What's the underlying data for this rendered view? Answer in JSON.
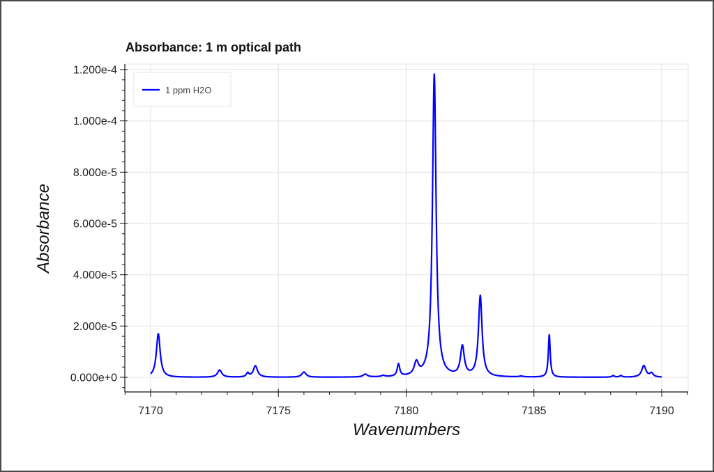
{
  "chart_data": {
    "type": "line",
    "title": "Absorbance: 1 m optical path",
    "xlabel": "Wavenumbers",
    "ylabel": "Absorbance",
    "xlim": [
      7169,
      7191
    ],
    "ylim": [
      -6e-06,
      0.000122
    ],
    "x_ticks": [
      7170,
      7175,
      7180,
      7185,
      7190
    ],
    "x_tick_labels": [
      "7170",
      "7175",
      "7180",
      "7185",
      "7190"
    ],
    "y_ticks": [
      0,
      2e-05,
      4e-05,
      6e-05,
      8e-05,
      0.0001,
      0.00012
    ],
    "y_tick_labels": [
      "0.000e+0",
      "2.000e-5",
      "4.000e-5",
      "6.000e-5",
      "8.000e-5",
      "1.000e-4",
      "1.200e-4"
    ],
    "grid": true,
    "legend_position": "top-left",
    "series": [
      {
        "name": "1 ppm H2O",
        "color": "#0000ff",
        "x_range": [
          7170.0,
          7190.0
        ],
        "peaks": [
          {
            "x": 7170.3,
            "y": 1.7e-05,
            "w": 0.09
          },
          {
            "x": 7172.7,
            "y": 2.8e-06,
            "w": 0.1
          },
          {
            "x": 7173.8,
            "y": 1.5e-06,
            "w": 0.06
          },
          {
            "x": 7174.1,
            "y": 4.4e-06,
            "w": 0.1
          },
          {
            "x": 7176.0,
            "y": 2e-06,
            "w": 0.1
          },
          {
            "x": 7178.4,
            "y": 1.1e-06,
            "w": 0.1
          },
          {
            "x": 7179.1,
            "y": 5e-07,
            "w": 0.08
          },
          {
            "x": 7179.7,
            "y": 4.8e-06,
            "w": 0.06
          },
          {
            "x": 7180.4,
            "y": 5e-06,
            "w": 0.1
          },
          {
            "x": 7181.1,
            "y": 0.000118,
            "w": 0.085
          },
          {
            "x": 7182.2,
            "y": 1.15e-05,
            "w": 0.09
          },
          {
            "x": 7182.9,
            "y": 3.15e-05,
            "w": 0.085
          },
          {
            "x": 7184.5,
            "y": 3e-07,
            "w": 0.1
          },
          {
            "x": 7185.6,
            "y": 1.65e-05,
            "w": 0.045
          },
          {
            "x": 7188.1,
            "y": 6e-07,
            "w": 0.06
          },
          {
            "x": 7188.4,
            "y": 6e-07,
            "w": 0.06
          },
          {
            "x": 7189.3,
            "y": 4.5e-06,
            "w": 0.1
          },
          {
            "x": 7189.6,
            "y": 1.5e-06,
            "w": 0.08
          }
        ]
      }
    ]
  }
}
